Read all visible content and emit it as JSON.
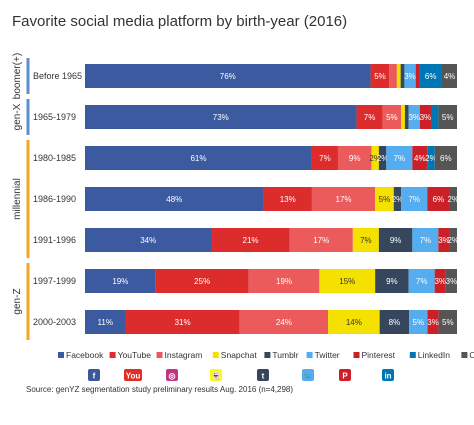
{
  "chart_data": {
    "type": "bar",
    "stacked": true,
    "orientation": "horizontal",
    "percent": true,
    "title": "Favorite social media platform by birth-year (2016)",
    "categories": [
      "Before 1965",
      "1965-1979",
      "1980-1985",
      "1986-1990",
      "1991-1996",
      "1997-1999",
      "2000-2003"
    ],
    "groups": [
      {
        "label": "boomer(+)",
        "from": 0,
        "to": 0,
        "color": "#5b8fc9"
      },
      {
        "label": "gen-X",
        "from": 1,
        "to": 1,
        "color": "#5b8fc9"
      },
      {
        "label": "millennial",
        "from": 2,
        "to": 4,
        "color": "#f5a623"
      },
      {
        "label": "gen-Z",
        "from": 5,
        "to": 6,
        "color": "#f5a623"
      }
    ],
    "series": [
      {
        "name": "Facebook",
        "color": "#3b5aa0",
        "values": [
          76,
          73,
          61,
          48,
          34,
          19,
          11
        ]
      },
      {
        "name": "YouTube",
        "color": "#dd2c2c",
        "values": [
          5,
          7,
          7,
          13,
          21,
          25,
          31
        ]
      },
      {
        "name": "Instagram",
        "color": "#eb5b5b",
        "values": [
          2,
          5,
          9,
          17,
          17,
          19,
          24
        ]
      },
      {
        "name": "Snapchat",
        "color": "#f5e100",
        "values": [
          1,
          1,
          2,
          5,
          7,
          15,
          14
        ]
      },
      {
        "name": "Tumblr",
        "color": "#35465d",
        "values": [
          1,
          1,
          2,
          2,
          9,
          9,
          8
        ]
      },
      {
        "name": "Twitter",
        "color": "#55acee",
        "values": [
          3,
          3,
          7,
          7,
          7,
          7,
          5
        ]
      },
      {
        "name": "Pinterest",
        "color": "#cb2027",
        "values": [
          1,
          3,
          4,
          6,
          3,
          3,
          3
        ]
      },
      {
        "name": "LinkedIn",
        "color": "#0077b5",
        "values": [
          6,
          2,
          2,
          0,
          0,
          0,
          0
        ]
      },
      {
        "name": "Other",
        "color": "#555555",
        "values": [
          4,
          5,
          6,
          2,
          2,
          3,
          5
        ]
      }
    ],
    "labels": [
      [
        "76%",
        "5%",
        "",
        "",
        "",
        "3%",
        "",
        "6%",
        "4%"
      ],
      [
        "73%",
        "7%",
        "5%",
        "",
        "",
        "3%",
        "3%",
        "",
        "5%"
      ],
      [
        "61%",
        "7%",
        "9%",
        "2%",
        "2%",
        "7%",
        "4%",
        "2%",
        "6%"
      ],
      [
        "48%",
        "13%",
        "17%",
        "5%",
        "2%",
        "7%",
        "6%",
        "",
        "2%"
      ],
      [
        "34%",
        "21%",
        "17%",
        "7%",
        "9%",
        "7%",
        "3%",
        "",
        "2%"
      ],
      [
        "19%",
        "25%",
        "19%",
        "15%",
        "9%",
        "7%",
        "3%",
        "",
        "3%"
      ],
      [
        "11%",
        "31%",
        "24%",
        "14%",
        "8%",
        "5%",
        "3%",
        "",
        "5%"
      ]
    ],
    "xlim": [
      0,
      100
    ],
    "legend_position": "bottom",
    "grid": false
  },
  "source": "Source: genYZ segmentation study preliminary results Aug. 2016  (n=4,298)",
  "brand_icons": [
    {
      "name": "facebook-icon",
      "glyph": "f",
      "color": "#3b5998"
    },
    {
      "name": "youtube-icon",
      "glyph": "You",
      "color": "#e52d27"
    },
    {
      "name": "instagram-icon",
      "glyph": "◎",
      "color": "#c13584"
    },
    {
      "name": "snapchat-icon",
      "glyph": "👻",
      "color": "#fffc00"
    },
    {
      "name": "tumblr-icon",
      "glyph": "t",
      "color": "#35465c"
    },
    {
      "name": "twitter-icon",
      "glyph": "🐦",
      "color": "#55acee"
    },
    {
      "name": "pinterest-icon",
      "glyph": "P",
      "color": "#cb2027"
    },
    {
      "name": "linkedin-icon",
      "glyph": "in",
      "color": "#0077b5"
    }
  ]
}
